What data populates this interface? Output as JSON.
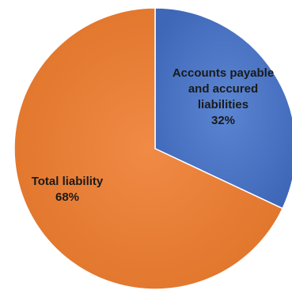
{
  "chart_data": {
    "type": "pie",
    "start_angle_deg": 0,
    "direction": "clockwise",
    "series": [
      {
        "label_lines": [
          "Accounts payable",
          "and accured",
          "liabilities"
        ],
        "value": 32,
        "value_label": "32%",
        "color": "#4472c4"
      },
      {
        "label_lines": [
          "Total liability"
        ],
        "value": 68,
        "value_label": "68%",
        "color": "#ed7d31"
      }
    ]
  }
}
